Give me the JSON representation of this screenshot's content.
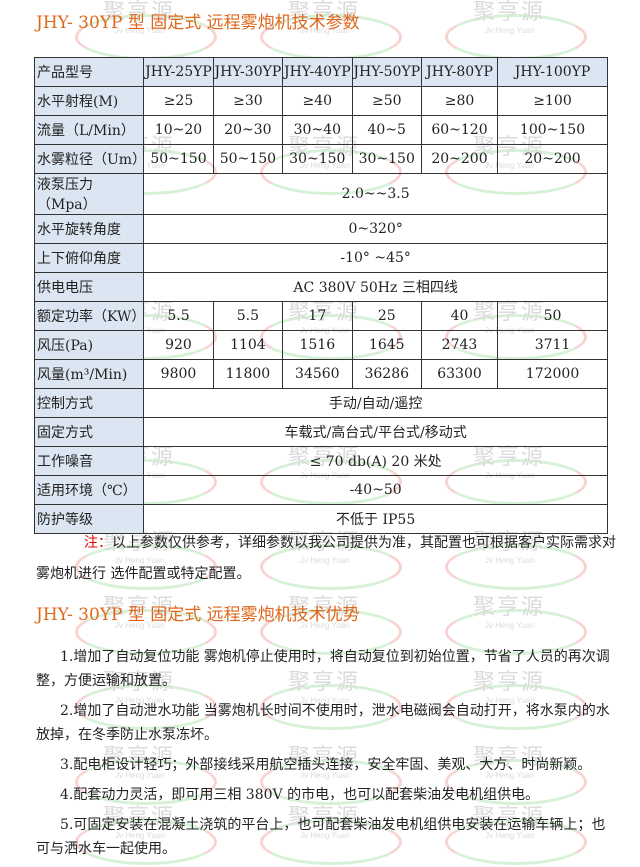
{
  "watermark": {
    "cn": "聚亨源",
    "en": "Jv Heng Yuan"
  },
  "title1": "JHY- 30YP 型 固定式 远程雾炮机技术参数",
  "table": {
    "header": [
      "产品型号",
      "JHY-25YP",
      "JHY-30YP",
      "JHY-40YP",
      "JHY-50YP",
      "JHY-80YP",
      "JHY-100YP"
    ],
    "rows": [
      {
        "label": "水平射程(M)",
        "values": [
          "≥25",
          "≥30",
          "≥40",
          "≥50",
          "≥80",
          "≥100"
        ]
      },
      {
        "label": "流量（L/Min）",
        "values": [
          "10~20",
          "20~30",
          "30~40",
          "40~5",
          "60~120",
          "100~150"
        ]
      },
      {
        "label": "水雾粒径（Um）",
        "values": [
          "50~150",
          "50~150",
          "30~150",
          "30~150",
          "20~200",
          "20~200"
        ]
      },
      {
        "label": "液泵压力（Mpa）",
        "span": "2.0~~3.5"
      },
      {
        "label": "水平旋转角度",
        "span": "0~320°"
      },
      {
        "label": "上下俯仰角度",
        "span": "-10° ~45°"
      },
      {
        "label": "供电电压",
        "span": "AC 380V  50Hz  三相四线"
      },
      {
        "label": "额定功率（KW）",
        "values": [
          "5.5",
          "5.5",
          "17",
          "25",
          "40",
          "50"
        ]
      },
      {
        "label": "风压(Pa)",
        "values": [
          "920",
          "1104",
          "1516",
          "1645",
          "2743",
          "3711"
        ]
      },
      {
        "label": "风量(m³/Min)",
        "values": [
          "9800",
          "11800",
          "34560",
          "36286",
          "63300",
          "172000"
        ]
      },
      {
        "label": "控制方式",
        "span": "手动/自动/遥控"
      },
      {
        "label": "固定方式",
        "span": "车载式/高台式/平台式/移动式"
      },
      {
        "label": "工作噪音",
        "span": "≤ 70 db(A) 20 米处"
      },
      {
        "label": "适用环境（℃）",
        "span": "-40~50"
      },
      {
        "label": "防护等级",
        "span": "不低于 IP55"
      }
    ]
  },
  "note": {
    "label": "注：",
    "text": "以上参数仅供参考，详细参数以我公司提供为准，其配置也可根据客户实际需求对雾炮机进行 选件配置或特定配置。"
  },
  "title2": "JHY- 30YP 型 固定式 远程雾炮机技术优势",
  "advantages": [
    "1.增加了自动复位功能 雾炮机停止使用时，将自动复位到初始位置，节省了人员的再次调整，方便运输和放置。",
    "2.增加了自动泄水功能 当雾炮机长时间不使用时，泄水电磁阀会自动打开，将水泵内的水放掉，在冬季防止水泵冻坏。",
    "3.配电柜设计轻巧；外部接线采用航空插头连接，安全牢固、美观、大方、时尚新颖。",
    "4.配套动力灵活，即可用三相 380V 的市电，也可以配套柴油发电机组供电。",
    "5.可固定安装在混凝土浇筑的平台上，也可配套柴油发电机组供电安装在运输车辆上；也可与洒水车一起使用。"
  ]
}
